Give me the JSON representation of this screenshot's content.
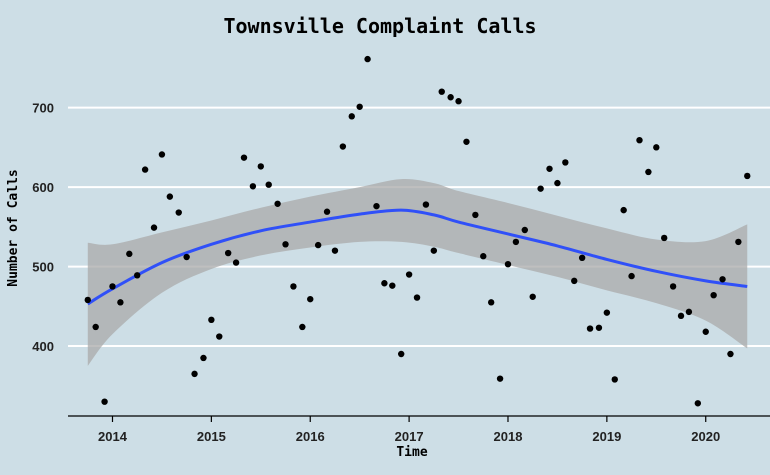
{
  "chart_data": {
    "type": "scatter",
    "title": "Townsville Complaint Calls",
    "xlabel": "Time",
    "ylabel": "Number of Calls",
    "x_ticks": [
      2014,
      2015,
      2016,
      2017,
      2018,
      2019,
      2020
    ],
    "y_ticks": [
      400,
      500,
      600,
      700
    ],
    "xlim": [
      2013.55,
      2020.65
    ],
    "ylim": [
      312,
      780
    ],
    "grid": "horizontal",
    "legend": "none",
    "colors": {
      "background": "#cddee6",
      "points": "#000000",
      "trend": "#3050f8",
      "band": "#a9a9a9",
      "grid": "#ffffff",
      "axis": "#000000"
    },
    "points": [
      [
        2013.75,
        458
      ],
      [
        2013.83,
        424
      ],
      [
        2013.92,
        330
      ],
      [
        2014.0,
        475
      ],
      [
        2014.08,
        455
      ],
      [
        2014.17,
        516
      ],
      [
        2014.25,
        489
      ],
      [
        2014.33,
        622
      ],
      [
        2014.42,
        549
      ],
      [
        2014.5,
        641
      ],
      [
        2014.58,
        588
      ],
      [
        2014.67,
        568
      ],
      [
        2014.75,
        512
      ],
      [
        2014.83,
        365
      ],
      [
        2014.92,
        385
      ],
      [
        2015.0,
        433
      ],
      [
        2015.08,
        412
      ],
      [
        2015.17,
        517
      ],
      [
        2015.25,
        505
      ],
      [
        2015.33,
        637
      ],
      [
        2015.42,
        601
      ],
      [
        2015.5,
        626
      ],
      [
        2015.58,
        603
      ],
      [
        2015.67,
        579
      ],
      [
        2015.75,
        528
      ],
      [
        2015.83,
        475
      ],
      [
        2015.92,
        424
      ],
      [
        2016.0,
        459
      ],
      [
        2016.08,
        527
      ],
      [
        2016.17,
        569
      ],
      [
        2016.25,
        520
      ],
      [
        2016.33,
        651
      ],
      [
        2016.42,
        689
      ],
      [
        2016.5,
        701
      ],
      [
        2016.58,
        761
      ],
      [
        2016.67,
        576
      ],
      [
        2016.75,
        479
      ],
      [
        2016.83,
        476
      ],
      [
        2016.92,
        390
      ],
      [
        2017.0,
        490
      ],
      [
        2017.08,
        461
      ],
      [
        2017.17,
        578
      ],
      [
        2017.25,
        520
      ],
      [
        2017.33,
        720
      ],
      [
        2017.42,
        713
      ],
      [
        2017.5,
        708
      ],
      [
        2017.58,
        657
      ],
      [
        2017.67,
        565
      ],
      [
        2017.75,
        513
      ],
      [
        2017.83,
        455
      ],
      [
        2017.92,
        359
      ],
      [
        2018.0,
        503
      ],
      [
        2018.08,
        531
      ],
      [
        2018.17,
        546
      ],
      [
        2018.25,
        462
      ],
      [
        2018.33,
        598
      ],
      [
        2018.42,
        623
      ],
      [
        2018.5,
        605
      ],
      [
        2018.58,
        631
      ],
      [
        2018.67,
        482
      ],
      [
        2018.75,
        511
      ],
      [
        2018.83,
        422
      ],
      [
        2018.92,
        423
      ],
      [
        2019.0,
        442
      ],
      [
        2019.08,
        358
      ],
      [
        2019.17,
        571
      ],
      [
        2019.25,
        488
      ],
      [
        2019.33,
        659
      ],
      [
        2019.42,
        619
      ],
      [
        2019.5,
        650
      ],
      [
        2019.58,
        536
      ],
      [
        2019.67,
        475
      ],
      [
        2019.75,
        438
      ],
      [
        2019.83,
        443
      ],
      [
        2019.92,
        328
      ],
      [
        2020.0,
        418
      ],
      [
        2020.08,
        464
      ],
      [
        2020.17,
        484
      ],
      [
        2020.25,
        390
      ],
      [
        2020.33,
        531
      ],
      [
        2020.42,
        614
      ]
    ],
    "trend": [
      [
        2013.75,
        453
      ],
      [
        2014.0,
        472
      ],
      [
        2014.5,
        505
      ],
      [
        2015.0,
        528
      ],
      [
        2015.5,
        545
      ],
      [
        2016.0,
        556
      ],
      [
        2016.5,
        566
      ],
      [
        2016.92,
        571
      ],
      [
        2017.25,
        565
      ],
      [
        2017.5,
        556
      ],
      [
        2018.0,
        541
      ],
      [
        2018.5,
        526
      ],
      [
        2019.0,
        509
      ],
      [
        2019.5,
        494
      ],
      [
        2020.0,
        482
      ],
      [
        2020.42,
        475
      ]
    ],
    "band_upper": [
      [
        2013.75,
        530
      ],
      [
        2014.0,
        528
      ],
      [
        2014.5,
        543
      ],
      [
        2015.0,
        558
      ],
      [
        2015.5,
        574
      ],
      [
        2016.0,
        588
      ],
      [
        2016.5,
        600
      ],
      [
        2016.92,
        610
      ],
      [
        2017.25,
        605
      ],
      [
        2017.5,
        595
      ],
      [
        2018.0,
        580
      ],
      [
        2018.5,
        564
      ],
      [
        2019.0,
        548
      ],
      [
        2019.5,
        534
      ],
      [
        2020.0,
        532
      ],
      [
        2020.42,
        553
      ]
    ],
    "band_lower": [
      [
        2013.75,
        375
      ],
      [
        2014.0,
        415
      ],
      [
        2014.5,
        467
      ],
      [
        2015.0,
        497
      ],
      [
        2015.5,
        514
      ],
      [
        2016.0,
        524
      ],
      [
        2016.5,
        531
      ],
      [
        2016.92,
        531
      ],
      [
        2017.25,
        525
      ],
      [
        2017.5,
        517
      ],
      [
        2018.0,
        502
      ],
      [
        2018.5,
        487
      ],
      [
        2019.0,
        470
      ],
      [
        2019.5,
        454
      ],
      [
        2020.0,
        432
      ],
      [
        2020.42,
        397
      ]
    ]
  }
}
